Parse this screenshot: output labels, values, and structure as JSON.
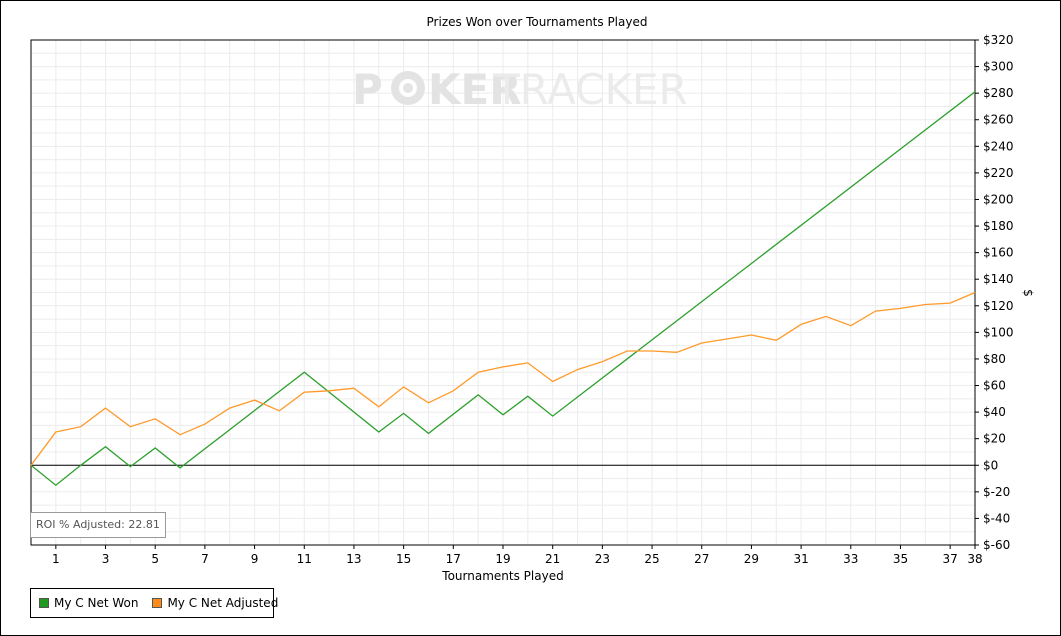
{
  "watermark": {
    "part1": "P",
    "part2": "KER",
    "part3": "TRACKER"
  },
  "roi_label": "ROI % Adjusted: 22.81",
  "colors": {
    "won": "#2ca02c",
    "adjusted": "#ff9a2a",
    "grid": "#ececec",
    "watermark": "#e6e6e6"
  },
  "legend": [
    {
      "label": "My C Net Won",
      "color": "#1f9a1f"
    },
    {
      "label": "My C Net Adjusted",
      "color": "#ff8c1a"
    }
  ],
  "chart_data": {
    "type": "line",
    "title": "Prizes Won over Tournaments Played",
    "xlabel": "Tournaments Played",
    "ylabel": "$",
    "xlim": [
      0,
      38
    ],
    "ylim": [
      -60,
      320
    ],
    "y_axis_position": "right",
    "grid": true,
    "legend_position": "bottom-left",
    "x_ticks": [
      1,
      3,
      5,
      7,
      9,
      11,
      13,
      15,
      17,
      19,
      21,
      23,
      25,
      27,
      29,
      31,
      33,
      35,
      37,
      38
    ],
    "y_ticks": [
      -60,
      -40,
      -20,
      0,
      20,
      40,
      60,
      80,
      100,
      120,
      140,
      160,
      180,
      200,
      220,
      240,
      260,
      280,
      300,
      320
    ],
    "y_tick_labels": [
      "$-60",
      "$-40",
      "$-20",
      "$0",
      "$20",
      "$40",
      "$60",
      "$80",
      "$100",
      "$120",
      "$140",
      "$160",
      "$180",
      "$200",
      "$220",
      "$240",
      "$260",
      "$280",
      "$300",
      "$320"
    ],
    "series": [
      {
        "name": "My C Net Won",
        "color": "#2ca02c",
        "x": [
          0,
          1,
          2,
          3,
          4,
          5,
          6,
          11,
          14,
          15,
          16,
          18,
          19,
          20,
          21,
          38
        ],
        "values": [
          0,
          -15,
          0,
          14,
          -1,
          13,
          -2,
          70,
          25,
          39,
          24,
          53,
          38,
          52,
          37,
          281
        ]
      },
      {
        "name": "My C Net Adjusted",
        "color": "#ff9a2a",
        "x": [
          0,
          1,
          2,
          3,
          4,
          5,
          6,
          7,
          8,
          9,
          10,
          11,
          12,
          13,
          14,
          15,
          16,
          17,
          18,
          19,
          20,
          21,
          22,
          23,
          24,
          25,
          26,
          27,
          28,
          29,
          30,
          31,
          32,
          33,
          34,
          35,
          36,
          37,
          38
        ],
        "values": [
          0,
          25,
          29,
          43,
          29,
          35,
          23,
          31,
          43,
          49,
          41,
          55,
          56,
          58,
          44,
          59,
          47,
          56,
          70,
          74,
          77,
          63,
          72,
          78,
          86,
          86,
          85,
          92,
          95,
          98,
          94,
          106,
          112,
          105,
          116,
          118,
          121,
          122,
          130
        ]
      }
    ]
  }
}
